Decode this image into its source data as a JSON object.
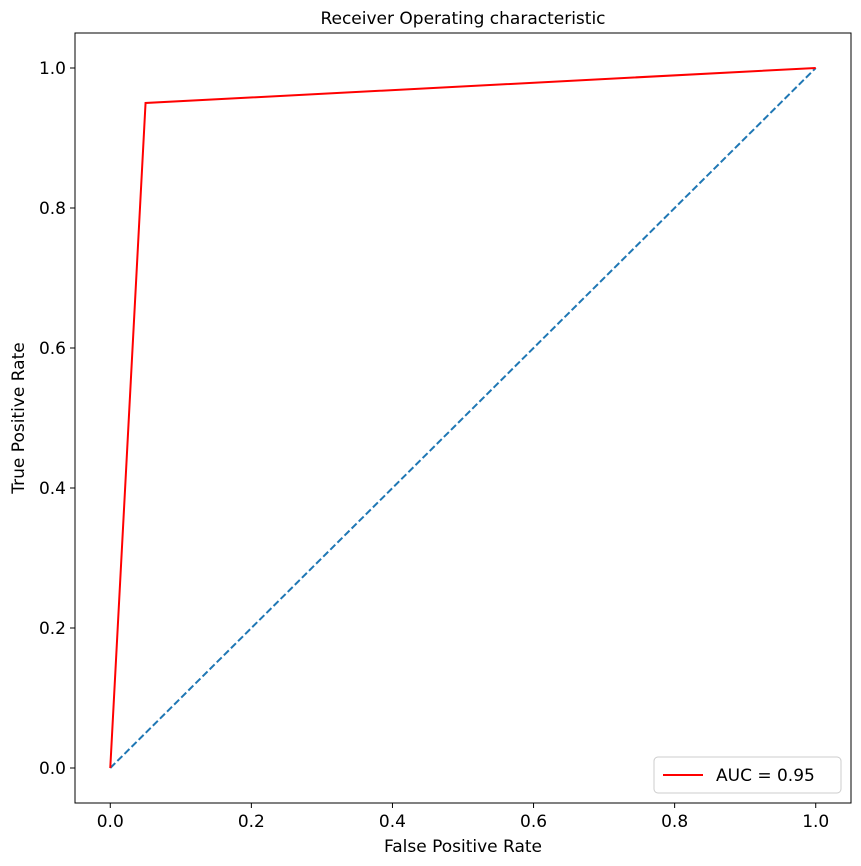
{
  "chart_data": {
    "type": "line",
    "title": "Receiver Operating characteristic",
    "xlabel": "False Positive Rate",
    "ylabel": "True Positive Rate",
    "xlim": [
      -0.05,
      1.05
    ],
    "ylim": [
      -0.05,
      1.05
    ],
    "xticks": [
      0.0,
      0.2,
      0.4,
      0.6,
      0.8,
      1.0
    ],
    "yticks": [
      0.0,
      0.2,
      0.4,
      0.6,
      0.8,
      1.0
    ],
    "xtick_labels": [
      "0.0",
      "0.2",
      "0.4",
      "0.6",
      "0.8",
      "1.0"
    ],
    "ytick_labels": [
      "0.0",
      "0.2",
      "0.4",
      "0.6",
      "0.8",
      "1.0"
    ],
    "grid": false,
    "legend_position": "lower right",
    "series": [
      {
        "name": "AUC = 0.95",
        "color": "#ff0000",
        "style": "solid",
        "x": [
          0.0,
          0.05,
          1.0
        ],
        "y": [
          0.0,
          0.95,
          1.0
        ]
      },
      {
        "color": "#1f77b4",
        "style": "dashed",
        "x": [
          0.0,
          1.0
        ],
        "y": [
          0.0,
          1.0
        ]
      }
    ]
  }
}
